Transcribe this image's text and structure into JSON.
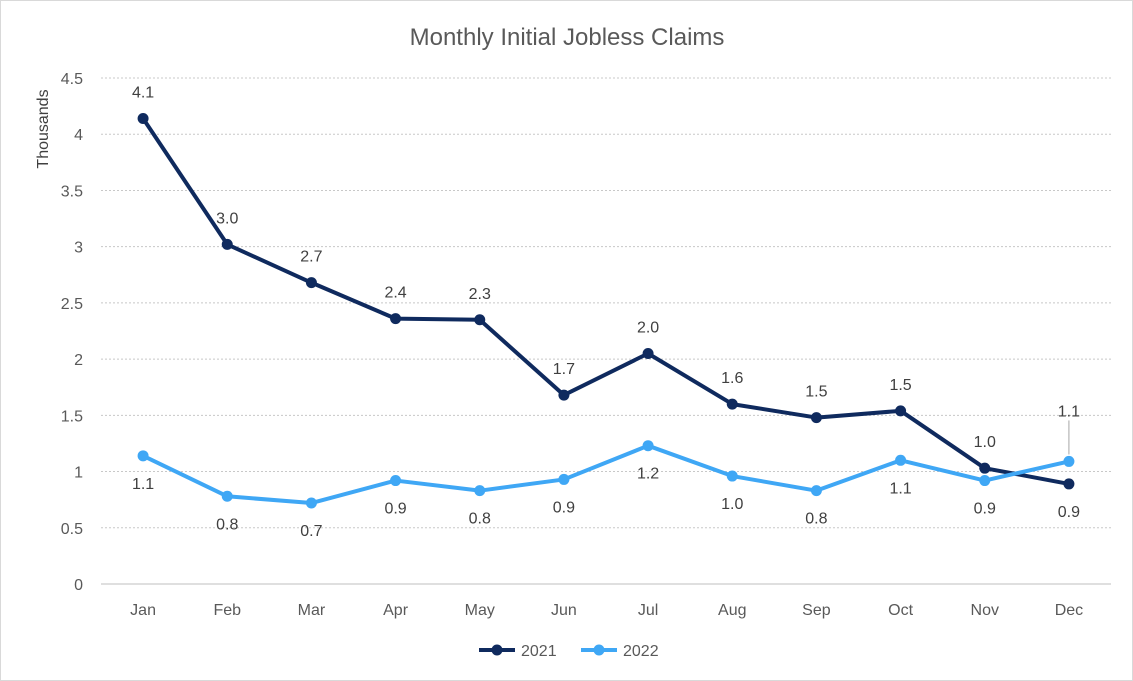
{
  "chart_data": {
    "type": "line",
    "title": "Monthly Initial Jobless Claims",
    "xlabel": "",
    "ylabel": "Thousands",
    "categories": [
      "Jan",
      "Feb",
      "Mar",
      "Apr",
      "May",
      "Jun",
      "Jul",
      "Aug",
      "Sep",
      "Oct",
      "Nov",
      "Dec"
    ],
    "ylim": [
      0,
      4.5
    ],
    "yticks": [
      "0",
      "0.5",
      "1",
      "1.5",
      "2",
      "2.5",
      "3",
      "3.5",
      "4",
      "4.5"
    ],
    "grid": true,
    "legend_position": "bottom",
    "series": [
      {
        "name": "2021",
        "color": "#0f2a5e",
        "values": [
          4.14,
          3.02,
          2.68,
          2.36,
          2.35,
          1.68,
          2.05,
          1.6,
          1.48,
          1.54,
          1.03,
          0.89
        ],
        "labels": [
          "4.1",
          "3.0",
          "2.7",
          "2.4",
          "2.3",
          "1.7",
          "2.0",
          "1.6",
          "1.5",
          "1.5",
          "1.0",
          "0.9"
        ]
      },
      {
        "name": "2022",
        "color": "#3fa7f5",
        "values": [
          1.14,
          0.78,
          0.72,
          0.92,
          0.83,
          0.93,
          1.23,
          0.96,
          0.83,
          1.1,
          0.92,
          1.09
        ],
        "labels": [
          "1.1",
          "0.8",
          "0.7",
          "0.9",
          "0.8",
          "0.9",
          "1.2",
          "1.0",
          "0.8",
          "1.1",
          "0.9",
          "1.1"
        ]
      }
    ]
  }
}
